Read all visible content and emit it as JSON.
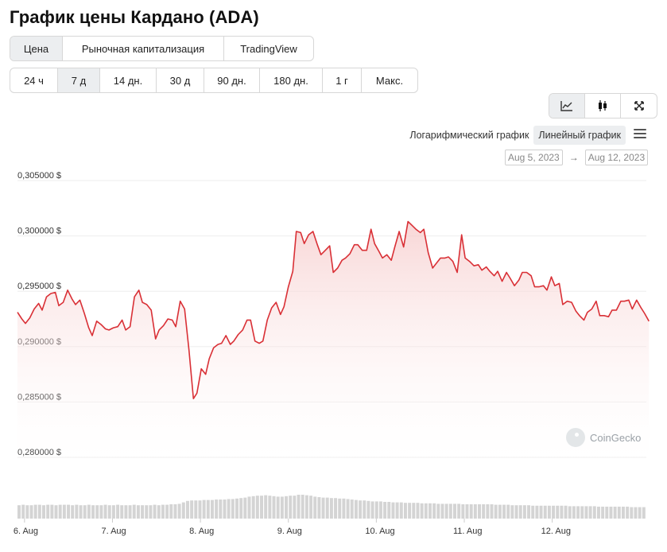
{
  "page": {
    "title": "График цены Кардано (ADA)",
    "tabs": [
      {
        "label": "Цена",
        "active": true
      },
      {
        "label": "Рыночная капитализация",
        "active": false
      },
      {
        "label": "TradingView",
        "active": false
      }
    ],
    "ranges": [
      {
        "label": "24 ч",
        "active": false
      },
      {
        "label": "7 д",
        "active": true
      },
      {
        "label": "14 дн.",
        "active": false
      },
      {
        "label": "30 д",
        "active": false
      },
      {
        "label": "90 дн.",
        "active": false
      },
      {
        "label": "180 дн.",
        "active": false
      },
      {
        "label": "1 г",
        "active": false
      },
      {
        "label": "Макс.",
        "active": false
      }
    ],
    "chart_types": [
      {
        "icon": "line-chart-icon",
        "active": true
      },
      {
        "icon": "candlestick-icon",
        "active": false
      },
      {
        "icon": "expand-icon",
        "active": false
      }
    ],
    "scale_log": "Логарифмический график",
    "scale_linear": "Линейный график",
    "date_from": "Aug 5, 2023",
    "date_arrow": "→",
    "date_to": "Aug 12, 2023",
    "watermark": "CoinGecko"
  },
  "colors": {
    "line": "#d93036",
    "fill_top": "#f6c9c9",
    "fill_bottom": "#ffffff",
    "volume": "#d4d4d4",
    "grid": "#eeeeee",
    "axis_text": "#333333"
  },
  "chart_data": {
    "type": "line",
    "title": "",
    "ylabel": "",
    "xlabel": "",
    "ylim": [
      0.2795,
      0.3055
    ],
    "xlim": [
      0,
      7.15
    ],
    "grid": true,
    "y_ticks": [
      {
        "value": 0.305,
        "label": "0,305000 $"
      },
      {
        "value": 0.3,
        "label": "0,300000 $"
      },
      {
        "value": 0.295,
        "label": "0,295000 $"
      },
      {
        "value": 0.29,
        "label": "0,290000 $"
      },
      {
        "value": 0.285,
        "label": "0,285000 $"
      },
      {
        "value": 0.28,
        "label": "0,280000 $"
      }
    ],
    "x_ticks": [
      {
        "value": 0.08,
        "label": "6. Aug"
      },
      {
        "value": 1.08,
        "label": "7. Aug"
      },
      {
        "value": 2.08,
        "label": "8. Aug"
      },
      {
        "value": 3.08,
        "label": "9. Aug"
      },
      {
        "value": 4.08,
        "label": "10. Aug"
      },
      {
        "value": 5.08,
        "label": "11. Aug"
      },
      {
        "value": 6.08,
        "label": "12. Aug"
      }
    ],
    "series": [
      {
        "values": [
          [
            0.0,
            0.2931
          ],
          [
            0.05,
            0.2925
          ],
          [
            0.09,
            0.2921
          ],
          [
            0.14,
            0.2926
          ],
          [
            0.19,
            0.2934
          ],
          [
            0.24,
            0.2939
          ],
          [
            0.28,
            0.2933
          ],
          [
            0.33,
            0.2945
          ],
          [
            0.38,
            0.2948
          ],
          [
            0.43,
            0.2949
          ],
          [
            0.47,
            0.2937
          ],
          [
            0.52,
            0.294
          ],
          [
            0.57,
            0.2951
          ],
          [
            0.62,
            0.2943
          ],
          [
            0.66,
            0.2938
          ],
          [
            0.71,
            0.2942
          ],
          [
            0.76,
            0.293
          ],
          [
            0.81,
            0.2917
          ],
          [
            0.85,
            0.291
          ],
          [
            0.9,
            0.2923
          ],
          [
            0.95,
            0.292
          ],
          [
            1.0,
            0.2916
          ],
          [
            1.04,
            0.2915
          ],
          [
            1.09,
            0.2917
          ],
          [
            1.14,
            0.2918
          ],
          [
            1.19,
            0.2924
          ],
          [
            1.23,
            0.2915
          ],
          [
            1.28,
            0.2918
          ],
          [
            1.33,
            0.2945
          ],
          [
            1.38,
            0.2951
          ],
          [
            1.42,
            0.294
          ],
          [
            1.47,
            0.2938
          ],
          [
            1.52,
            0.2933
          ],
          [
            1.57,
            0.2907
          ],
          [
            1.61,
            0.2915
          ],
          [
            1.66,
            0.2919
          ],
          [
            1.71,
            0.2925
          ],
          [
            1.76,
            0.2924
          ],
          [
            1.8,
            0.2918
          ],
          [
            1.85,
            0.2941
          ],
          [
            1.9,
            0.2934
          ],
          [
            1.95,
            0.2897
          ],
          [
            2.0,
            0.2853
          ],
          [
            2.04,
            0.2858
          ],
          [
            2.09,
            0.288
          ],
          [
            2.14,
            0.2875
          ],
          [
            2.18,
            0.2889
          ],
          [
            2.23,
            0.2899
          ],
          [
            2.28,
            0.2902
          ],
          [
            2.32,
            0.2903
          ],
          [
            2.37,
            0.291
          ],
          [
            2.42,
            0.2902
          ],
          [
            2.46,
            0.2905
          ],
          [
            2.51,
            0.2911
          ],
          [
            2.56,
            0.2915
          ],
          [
            2.61,
            0.2924
          ],
          [
            2.65,
            0.2924
          ],
          [
            2.7,
            0.2905
          ],
          [
            2.75,
            0.2903
          ],
          [
            2.79,
            0.2905
          ],
          [
            2.84,
            0.2924
          ],
          [
            2.89,
            0.2935
          ],
          [
            2.94,
            0.294
          ],
          [
            2.99,
            0.2929
          ],
          [
            3.03,
            0.2936
          ],
          [
            3.08,
            0.2954
          ],
          [
            3.13,
            0.2968
          ],
          [
            3.17,
            0.3004
          ],
          [
            3.22,
            0.3003
          ],
          [
            3.26,
            0.2993
          ],
          [
            3.31,
            0.3001
          ],
          [
            3.36,
            0.3004
          ],
          [
            3.41,
            0.2992
          ],
          [
            3.45,
            0.2983
          ],
          [
            3.5,
            0.2987
          ],
          [
            3.55,
            0.2991
          ],
          [
            3.59,
            0.2967
          ],
          [
            3.64,
            0.2971
          ],
          [
            3.69,
            0.2978
          ],
          [
            3.73,
            0.298
          ],
          [
            3.78,
            0.2984
          ],
          [
            3.83,
            0.2992
          ],
          [
            3.87,
            0.2992
          ],
          [
            3.92,
            0.2987
          ],
          [
            3.97,
            0.2987
          ],
          [
            4.02,
            0.3006
          ],
          [
            4.06,
            0.2993
          ],
          [
            4.11,
            0.2986
          ],
          [
            4.15,
            0.298
          ],
          [
            4.2,
            0.2983
          ],
          [
            4.25,
            0.2978
          ],
          [
            4.29,
            0.299
          ],
          [
            4.34,
            0.3004
          ],
          [
            4.39,
            0.299
          ],
          [
            4.44,
            0.3013
          ],
          [
            4.48,
            0.301
          ],
          [
            4.53,
            0.3006
          ],
          [
            4.58,
            0.3003
          ],
          [
            4.62,
            0.3006
          ],
          [
            4.67,
            0.2985
          ],
          [
            4.72,
            0.2971
          ],
          [
            4.76,
            0.2975
          ],
          [
            4.81,
            0.298
          ],
          [
            4.86,
            0.298
          ],
          [
            4.9,
            0.2981
          ],
          [
            4.95,
            0.2977
          ],
          [
            5.0,
            0.2967
          ],
          [
            5.05,
            0.3001
          ],
          [
            5.09,
            0.298
          ],
          [
            5.14,
            0.2977
          ],
          [
            5.19,
            0.2973
          ],
          [
            5.24,
            0.2974
          ],
          [
            5.28,
            0.2969
          ],
          [
            5.33,
            0.2972
          ],
          [
            5.37,
            0.2968
          ],
          [
            5.42,
            0.2964
          ],
          [
            5.46,
            0.2968
          ],
          [
            5.51,
            0.2959
          ],
          [
            5.56,
            0.2967
          ],
          [
            5.6,
            0.2962
          ],
          [
            5.65,
            0.2955
          ],
          [
            5.7,
            0.296
          ],
          [
            5.74,
            0.2967
          ],
          [
            5.79,
            0.2967
          ],
          [
            5.84,
            0.2964
          ],
          [
            5.88,
            0.2954
          ],
          [
            5.93,
            0.2954
          ],
          [
            5.98,
            0.2955
          ],
          [
            6.02,
            0.2951
          ],
          [
            6.07,
            0.2963
          ],
          [
            6.11,
            0.2955
          ],
          [
            6.16,
            0.2957
          ],
          [
            6.2,
            0.2938
          ],
          [
            6.25,
            0.2941
          ],
          [
            6.3,
            0.294
          ],
          [
            6.35,
            0.2932
          ],
          [
            6.39,
            0.2928
          ],
          [
            6.44,
            0.2924
          ],
          [
            6.48,
            0.2931
          ],
          [
            6.53,
            0.2934
          ],
          [
            6.58,
            0.2941
          ],
          [
            6.62,
            0.2928
          ],
          [
            6.67,
            0.2928
          ],
          [
            6.72,
            0.2927
          ],
          [
            6.76,
            0.2933
          ],
          [
            6.81,
            0.2933
          ],
          [
            6.86,
            0.2941
          ],
          [
            6.9,
            0.2941
          ],
          [
            6.95,
            0.2942
          ],
          [
            6.99,
            0.2934
          ],
          [
            7.04,
            0.2942
          ],
          [
            7.09,
            0.2935
          ],
          [
            7.13,
            0.293
          ],
          [
            7.18,
            0.2923
          ]
        ]
      }
    ],
    "volume": [
      0.28,
      0.29,
      0.28,
      0.28,
      0.29,
      0.29,
      0.28,
      0.29,
      0.29,
      0.28,
      0.29,
      0.29,
      0.29,
      0.28,
      0.29,
      0.28,
      0.28,
      0.29,
      0.28,
      0.28,
      0.28,
      0.29,
      0.28,
      0.28,
      0.29,
      0.28,
      0.28,
      0.28,
      0.29,
      0.28,
      0.28,
      0.28,
      0.28,
      0.29,
      0.28,
      0.29,
      0.29,
      0.3,
      0.3,
      0.31,
      0.34,
      0.37,
      0.38,
      0.38,
      0.38,
      0.39,
      0.39,
      0.39,
      0.4,
      0.4,
      0.4,
      0.41,
      0.41,
      0.42,
      0.43,
      0.44,
      0.46,
      0.47,
      0.48,
      0.48,
      0.49,
      0.48,
      0.47,
      0.46,
      0.46,
      0.47,
      0.48,
      0.48,
      0.5,
      0.5,
      0.49,
      0.48,
      0.46,
      0.45,
      0.44,
      0.44,
      0.43,
      0.43,
      0.42,
      0.42,
      0.41,
      0.4,
      0.39,
      0.38,
      0.38,
      0.37,
      0.36,
      0.36,
      0.36,
      0.35,
      0.35,
      0.34,
      0.34,
      0.34,
      0.33,
      0.33,
      0.33,
      0.33,
      0.32,
      0.32,
      0.32,
      0.32,
      0.31,
      0.31,
      0.31,
      0.31,
      0.31,
      0.31,
      0.3,
      0.3,
      0.3,
      0.3,
      0.3,
      0.3,
      0.3,
      0.3,
      0.29,
      0.29,
      0.29,
      0.29,
      0.28,
      0.28,
      0.28,
      0.28,
      0.28,
      0.27,
      0.27,
      0.27,
      0.27,
      0.27,
      0.27,
      0.27,
      0.27,
      0.27,
      0.26,
      0.26,
      0.26,
      0.26,
      0.26,
      0.26,
      0.26,
      0.25,
      0.25,
      0.25,
      0.25,
      0.25,
      0.25,
      0.25,
      0.25,
      0.24,
      0.24,
      0.24,
      0.24
    ]
  }
}
